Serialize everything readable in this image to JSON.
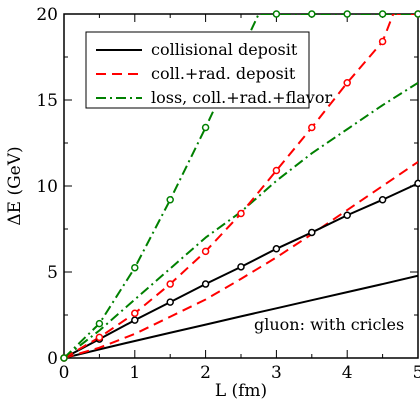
{
  "chart_data": {
    "type": "line",
    "xlabel": "L (fm)",
    "ylabel": "ΔE (GeV)",
    "xlim": [
      0,
      5
    ],
    "ylim": [
      0,
      20
    ],
    "x_ticks": [
      "0",
      "1",
      "2",
      "3",
      "4",
      "5"
    ],
    "y_ticks": [
      "0",
      "5",
      "10",
      "15",
      "20"
    ],
    "grid": false,
    "legend_position": "top-left",
    "annotation": "gluon: with cricles",
    "series": [
      {
        "name": "collisional deposit",
        "color": "#000000",
        "dash": "solid",
        "markers": false,
        "x": [
          0,
          0.5,
          1,
          1.5,
          2,
          2.5,
          3,
          3.5,
          4,
          4.5,
          5
        ],
        "y": [
          0,
          0.5,
          0.99,
          1.47,
          1.94,
          2.42,
          2.89,
          3.36,
          3.83,
          4.3,
          4.78
        ]
      },
      {
        "name": "coll.+rad. deposit",
        "color": "#ff0000",
        "dash": "dashed",
        "markers": false,
        "x": [
          0,
          0.5,
          1,
          1.5,
          2,
          2.5,
          3,
          3.5,
          4,
          4.5,
          5
        ],
        "y": [
          0,
          0.6,
          1.4,
          2.4,
          3.4,
          4.6,
          5.85,
          7.2,
          8.6,
          10.0,
          11.4
        ]
      },
      {
        "name": "loss, coll.+rad.+flavor",
        "color": "#008000",
        "dash": "dashdot",
        "markers": false,
        "x": [
          0,
          0.5,
          1,
          1.5,
          2,
          2.5,
          3,
          3.5,
          4,
          4.5,
          5
        ],
        "y": [
          0,
          1.6,
          3.4,
          5.2,
          7.0,
          8.5,
          10.3,
          11.9,
          13.3,
          14.7,
          16.0
        ]
      },
      {
        "name": "",
        "color": "#000000",
        "dash": "solid",
        "markers": true,
        "x": [
          0,
          0.5,
          1,
          1.5,
          2,
          2.5,
          3,
          3.5,
          4,
          4.5,
          5
        ],
        "y": [
          0,
          1.1,
          2.2,
          3.25,
          4.3,
          5.3,
          6.35,
          7.3,
          8.3,
          9.2,
          10.15
        ]
      },
      {
        "name": "",
        "color": "#ff0000",
        "dash": "dashed",
        "markers": true,
        "x": [
          0,
          0.5,
          1,
          1.5,
          2,
          2.5,
          3,
          3.5,
          4,
          4.5,
          4.65,
          5
        ],
        "y": [
          0,
          1.2,
          2.6,
          4.3,
          6.2,
          8.4,
          10.9,
          13.4,
          16.0,
          18.4,
          20,
          20
        ]
      },
      {
        "name": "",
        "color": "#008000",
        "dash": "dashdot",
        "markers": true,
        "x": [
          0,
          0.5,
          1,
          1.5,
          2,
          2.5,
          2.75,
          3,
          3.5,
          4,
          4.5,
          5
        ],
        "y": [
          0,
          2.0,
          5.25,
          9.2,
          13.4,
          17.8,
          20,
          20,
          20,
          20,
          20,
          20
        ]
      }
    ]
  }
}
